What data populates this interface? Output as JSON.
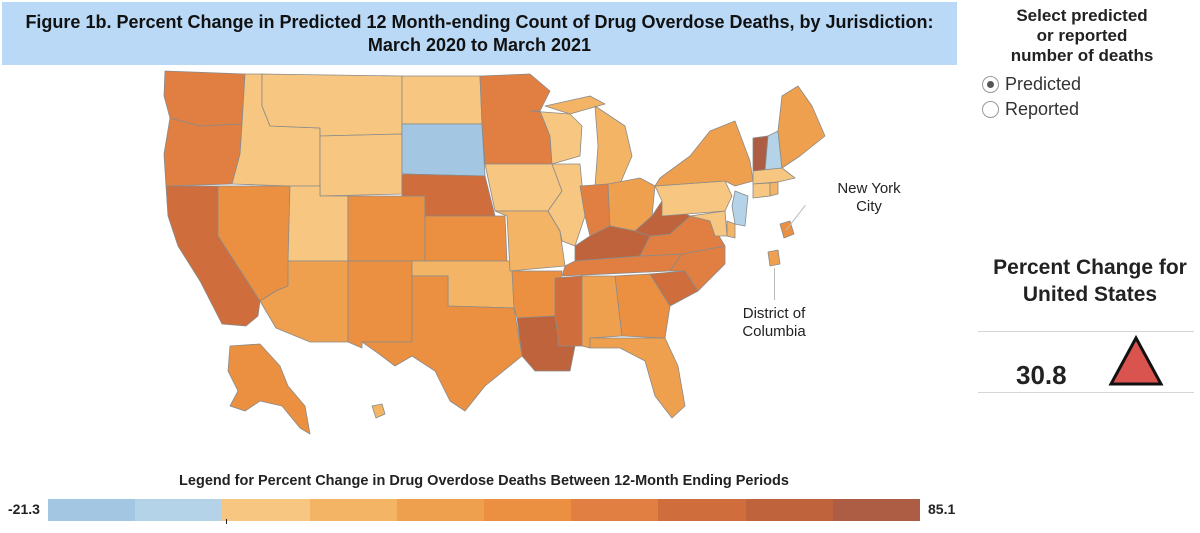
{
  "title": {
    "line1": "Figure 1b. Percent Change in Predicted 12 Month-ending Count of Drug Overdose Deaths, by Jurisdiction:",
    "line2": "March 2020 to March 2021"
  },
  "selector": {
    "title_lines": [
      "Select predicted",
      "or reported",
      "number of deaths"
    ],
    "options": [
      {
        "label": "Predicted",
        "checked": true
      },
      {
        "label": "Reported",
        "checked": false
      }
    ]
  },
  "callouts": {
    "nyc_line1": "New York",
    "nyc_line2": "City",
    "dc_line1": "District of",
    "dc_line2": "Columbia"
  },
  "kpi": {
    "title_line1": "Percent Change for",
    "title_line2": "United States",
    "value": "30.8",
    "direction": "increase",
    "color": "#d9534f"
  },
  "chart_data": {
    "type": "choropleth",
    "title": "Figure 1b. Percent Change in Predicted 12 Month-ending Count of Drug Overdose Deaths, by Jurisdiction: March 2020 to March 2021",
    "legend": {
      "title": "Legend for Percent Change in Drug Overdose Deaths Between 12-Month Ending Periods",
      "min_label": "-21.3",
      "max_label": "85.1",
      "min": -21.3,
      "max": 85.1,
      "bins": [
        "#a3c7e3",
        "#b4d2e8",
        "#f7c680",
        "#f3b466",
        "#efa04e",
        "#eb9040",
        "#e07f41",
        "#d06d3d",
        "#bf633c",
        "#ad5d44"
      ]
    },
    "jurisdictions": [
      {
        "name": "WA",
        "bin": 6
      },
      {
        "name": "OR",
        "bin": 6
      },
      {
        "name": "CA",
        "bin": 7
      },
      {
        "name": "NV",
        "bin": 5
      },
      {
        "name": "ID",
        "bin": 2
      },
      {
        "name": "MT",
        "bin": 2
      },
      {
        "name": "WY",
        "bin": 2
      },
      {
        "name": "UT",
        "bin": 2
      },
      {
        "name": "AZ",
        "bin": 4
      },
      {
        "name": "CO",
        "bin": 5
      },
      {
        "name": "NM",
        "bin": 5
      },
      {
        "name": "ND",
        "bin": 2
      },
      {
        "name": "SD",
        "bin": 0
      },
      {
        "name": "NE",
        "bin": 7
      },
      {
        "name": "KS",
        "bin": 5
      },
      {
        "name": "OK",
        "bin": 3
      },
      {
        "name": "TX",
        "bin": 5
      },
      {
        "name": "MN",
        "bin": 6
      },
      {
        "name": "IA",
        "bin": 2
      },
      {
        "name": "MO",
        "bin": 3
      },
      {
        "name": "AR",
        "bin": 5
      },
      {
        "name": "LA",
        "bin": 8
      },
      {
        "name": "WI",
        "bin": 2
      },
      {
        "name": "IL",
        "bin": 2
      },
      {
        "name": "MI",
        "bin": 3
      },
      {
        "name": "IN",
        "bin": 6
      },
      {
        "name": "OH",
        "bin": 4
      },
      {
        "name": "KY",
        "bin": 8
      },
      {
        "name": "TN",
        "bin": 6
      },
      {
        "name": "MS",
        "bin": 7
      },
      {
        "name": "AL",
        "bin": 4
      },
      {
        "name": "GA",
        "bin": 5
      },
      {
        "name": "FL",
        "bin": 4
      },
      {
        "name": "SC",
        "bin": 7
      },
      {
        "name": "NC",
        "bin": 6
      },
      {
        "name": "VA",
        "bin": 6
      },
      {
        "name": "WV",
        "bin": 8
      },
      {
        "name": "PA",
        "bin": 2
      },
      {
        "name": "NY",
        "bin": 4
      },
      {
        "name": "VT",
        "bin": 9
      },
      {
        "name": "NH",
        "bin": 1
      },
      {
        "name": "ME",
        "bin": 4
      },
      {
        "name": "MA",
        "bin": 2
      },
      {
        "name": "CT",
        "bin": 2
      },
      {
        "name": "RI",
        "bin": 3
      },
      {
        "name": "NJ",
        "bin": 1
      },
      {
        "name": "DE",
        "bin": 3
      },
      {
        "name": "MD",
        "bin": 2
      },
      {
        "name": "NYC",
        "bin": 5
      },
      {
        "name": "DC",
        "bin": 4
      },
      {
        "name": "AK",
        "bin": 5
      },
      {
        "name": "HI",
        "bin": 3
      }
    ]
  }
}
